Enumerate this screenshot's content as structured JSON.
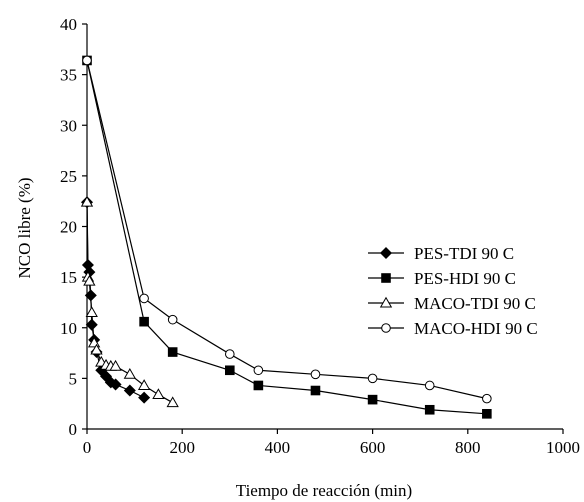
{
  "chart_data": {
    "type": "scatter",
    "title": "",
    "xlabel": "Tiempo de reacción (min)",
    "ylabel": "NCO libre (%)",
    "xlim": [
      0,
      1000
    ],
    "ylim": [
      0,
      40
    ],
    "xticks": [
      "0",
      "200",
      "400",
      "600",
      "800",
      "1000"
    ],
    "yticks": [
      "0",
      "5",
      "10",
      "15",
      "20",
      "25",
      "30",
      "35",
      "40"
    ],
    "grid": false,
    "legend_position": "center-right",
    "series": [
      {
        "name": "PES-TDI 90 C",
        "marker": "filled-diamond",
        "color": "#000000",
        "x": [
          0,
          2,
          5,
          8,
          10,
          15,
          20,
          30,
          40,
          50,
          60,
          90,
          120
        ],
        "y": [
          22.4,
          16.2,
          15.5,
          13.2,
          10.3,
          8.8,
          7.6,
          5.8,
          5.2,
          4.6,
          4.4,
          3.8,
          3.1
        ]
      },
      {
        "name": "PES-HDI 90 C",
        "marker": "filled-square",
        "color": "#000000",
        "x": [
          0,
          120,
          180,
          300,
          360,
          480,
          600,
          720,
          840
        ],
        "y": [
          36.4,
          10.6,
          7.6,
          5.8,
          4.3,
          3.8,
          2.9,
          1.9,
          1.5
        ]
      },
      {
        "name": "MACO-TDI 90 C",
        "marker": "open-triangle",
        "color": "#000000",
        "x": [
          0,
          2,
          5,
          10,
          15,
          20,
          30,
          40,
          50,
          60,
          90,
          120,
          150,
          180
        ],
        "y": [
          22.4,
          15.0,
          14.6,
          11.5,
          8.5,
          7.8,
          6.6,
          6.3,
          6.2,
          6.2,
          5.4,
          4.3,
          3.4,
          2.6
        ]
      },
      {
        "name": "MACO-HDI 90 C",
        "marker": "open-circle",
        "color": "#000000",
        "x": [
          0,
          120,
          180,
          300,
          360,
          480,
          600,
          720,
          840
        ],
        "y": [
          36.4,
          12.9,
          10.8,
          7.4,
          5.8,
          5.4,
          5.0,
          4.3,
          3.0
        ]
      }
    ]
  }
}
